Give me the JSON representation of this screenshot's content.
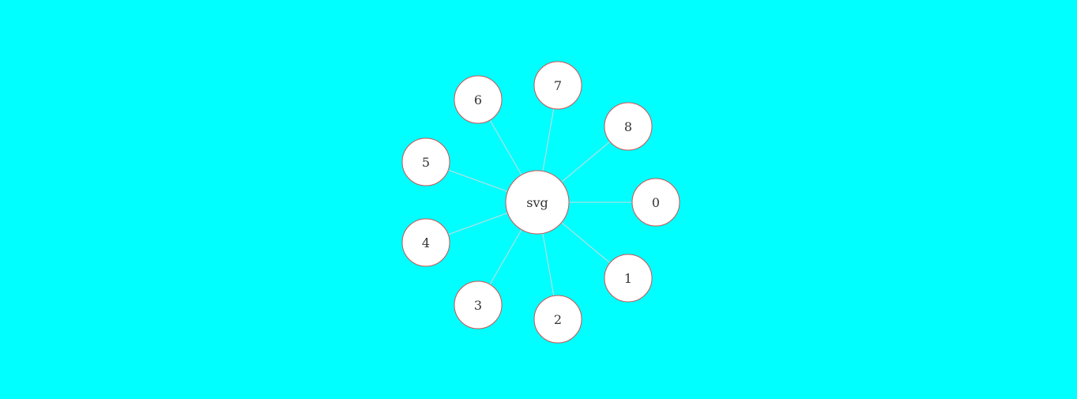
{
  "diagram": {
    "center": {
      "id": "svg",
      "label": "svg"
    },
    "leaves": [
      {
        "id": "0",
        "label": "0"
      },
      {
        "id": "1",
        "label": "1"
      },
      {
        "id": "2",
        "label": "2"
      },
      {
        "id": "3",
        "label": "3"
      },
      {
        "id": "4",
        "label": "4"
      },
      {
        "id": "5",
        "label": "5"
      },
      {
        "id": "6",
        "label": "6"
      },
      {
        "id": "7",
        "label": "7"
      },
      {
        "id": "8",
        "label": "8"
      }
    ],
    "edges": [
      [
        "svg",
        "0"
      ],
      [
        "svg",
        "1"
      ],
      [
        "svg",
        "2"
      ],
      [
        "svg",
        "3"
      ],
      [
        "svg",
        "4"
      ],
      [
        "svg",
        "5"
      ],
      [
        "svg",
        "6"
      ],
      [
        "svg",
        "7"
      ],
      [
        "svg",
        "8"
      ]
    ],
    "colors": {
      "background": "#00ffff",
      "node_fill": "#ffffff",
      "node_stroke": "#d05050",
      "edge": "#cfd8dc"
    }
  }
}
